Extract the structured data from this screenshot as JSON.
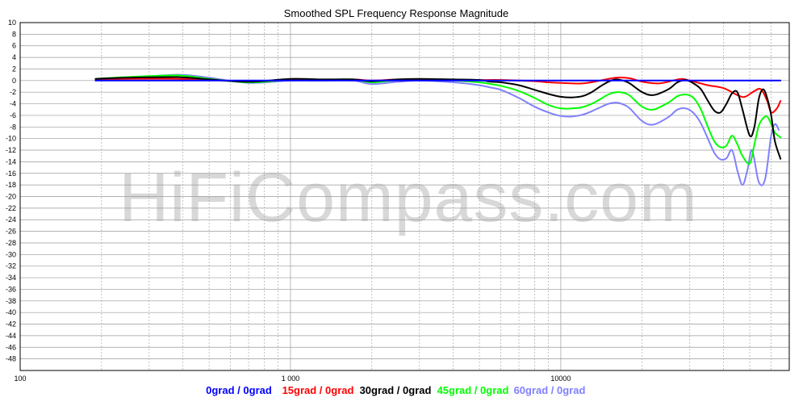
{
  "chart_data": {
    "type": "line",
    "title": "Smoothed SPL Frequency Response Magnitude",
    "watermark": "HiFiCompass.com",
    "xscale": "log",
    "xlim": [
      100,
      70000
    ],
    "ylim": [
      -50,
      10
    ],
    "x_tick_labels": [
      {
        "value": 100,
        "label": "100"
      },
      {
        "value": 1000,
        "label": "1 000"
      },
      {
        "value": 10000,
        "label": "10000"
      }
    ],
    "y_ticks": [
      10,
      8,
      6,
      4,
      2,
      0,
      -2,
      -4,
      -6,
      -8,
      -10,
      -12,
      -14,
      -16,
      -18,
      -20,
      -22,
      -24,
      -26,
      -28,
      -30,
      -32,
      -34,
      -36,
      -38,
      -40,
      -42,
      -44,
      -46,
      -48
    ],
    "grid": true,
    "legend_position": "bottom",
    "series": [
      {
        "name": "0grad / 0grad",
        "color": "#0000ff",
        "x": [
          190,
          500,
          1000,
          5000,
          10000,
          20000,
          40000,
          65000
        ],
        "y": [
          0,
          0,
          0,
          0,
          0,
          0,
          0,
          0
        ]
      },
      {
        "name": "15grad / 0grad",
        "color": "#ff0000",
        "x": [
          190,
          250,
          380,
          500,
          700,
          1000,
          1300,
          1700,
          2000,
          2500,
          3000,
          4000,
          5000,
          6000,
          7000,
          8000,
          9000,
          10000,
          12000,
          14000,
          16000,
          18000,
          20000,
          23000,
          26000,
          28000,
          30000,
          35000,
          40000,
          45000,
          48000,
          52000,
          55000,
          58000,
          60000,
          63000,
          65000
        ],
        "y": [
          0.2,
          0.3,
          0.3,
          0.1,
          -0.1,
          0.1,
          0.1,
          0.2,
          0.0,
          0.2,
          0.2,
          0.1,
          0.1,
          0.1,
          0.0,
          -0.1,
          -0.3,
          -0.4,
          -0.5,
          0.0,
          0.5,
          0.4,
          -0.2,
          -0.5,
          0.0,
          0.3,
          0.0,
          -0.8,
          -1.3,
          -2.5,
          -2.8,
          -1.8,
          -1.5,
          -3.5,
          -5.5,
          -4.8,
          -3.5
        ]
      },
      {
        "name": "30grad / 0grad",
        "color": "#000000",
        "x": [
          190,
          250,
          380,
          500,
          700,
          1000,
          1300,
          1700,
          2000,
          2500,
          3000,
          4000,
          5000,
          5500,
          6000,
          7000,
          8000,
          9000,
          10000,
          11000,
          12000,
          13000,
          14000,
          15000,
          16000,
          17000,
          18000,
          20000,
          22000,
          25000,
          27000,
          29000,
          31000,
          33000,
          35000,
          37000,
          39000,
          41000,
          43000,
          45000,
          47000,
          50000,
          52000,
          54000,
          56000,
          58000,
          60000,
          62000,
          65000
        ],
        "y": [
          0.3,
          0.5,
          0.6,
          0.2,
          -0.2,
          0.3,
          0.2,
          0.2,
          -0.1,
          0.2,
          0.3,
          0.2,
          0.1,
          -0.2,
          -0.3,
          -0.8,
          -1.6,
          -2.3,
          -2.8,
          -2.9,
          -2.7,
          -2.0,
          -1.0,
          -0.2,
          0.2,
          0.0,
          -0.5,
          -2.0,
          -2.5,
          -1.5,
          -0.3,
          0.1,
          -0.5,
          -1.5,
          -3.5,
          -5.2,
          -5.5,
          -4.0,
          -2.2,
          -2.0,
          -5.0,
          -9.5,
          -8.0,
          -3.2,
          -1.5,
          -3.0,
          -6.0,
          -10.5,
          -13.5
        ]
      },
      {
        "name": "45grad / 0grad",
        "color": "#00ff00",
        "x": [
          190,
          250,
          380,
          500,
          700,
          1000,
          1300,
          1700,
          2000,
          2500,
          3000,
          4000,
          5000,
          5500,
          6000,
          7000,
          8000,
          9000,
          10000,
          11000,
          12000,
          13000,
          14000,
          15000,
          16000,
          17000,
          18000,
          20000,
          22000,
          25000,
          27000,
          29000,
          31000,
          33000,
          35000,
          37000,
          39000,
          41000,
          43000,
          45000,
          47000,
          50000,
          52000,
          54000,
          56000,
          58000,
          60000,
          62000,
          65000
        ],
        "y": [
          0.3,
          0.6,
          0.9,
          0.3,
          -0.3,
          0.1,
          0.1,
          0.2,
          -0.3,
          0.1,
          0.2,
          0.0,
          -0.3,
          -0.6,
          -0.9,
          -1.8,
          -3.0,
          -4.2,
          -4.8,
          -4.8,
          -4.6,
          -4.0,
          -3.2,
          -2.4,
          -2.0,
          -2.1,
          -2.6,
          -4.5,
          -5.0,
          -3.8,
          -2.7,
          -2.4,
          -3.0,
          -5.0,
          -8.0,
          -10.5,
          -11.5,
          -11.2,
          -9.5,
          -11.0,
          -13.0,
          -14.3,
          -11.0,
          -7.8,
          -6.5,
          -6.2,
          -7.5,
          -9.0,
          -9.8
        ]
      },
      {
        "name": "60grad / 0grad",
        "color": "#8080ff",
        "x": [
          190,
          250,
          380,
          500,
          700,
          1000,
          1300,
          1700,
          2000,
          2500,
          3000,
          4000,
          5000,
          5500,
          6000,
          7000,
          8000,
          9000,
          10000,
          11000,
          12000,
          13000,
          14000,
          15000,
          16000,
          17000,
          18000,
          20000,
          22000,
          25000,
          27000,
          29000,
          31000,
          33000,
          35000,
          37000,
          39000,
          41000,
          43000,
          45000,
          47000,
          49000,
          51000,
          54000,
          57000,
          60000,
          62000,
          64000
        ],
        "y": [
          0.0,
          0.4,
          1.0,
          0.5,
          -0.4,
          0.0,
          0.0,
          0.0,
          -0.6,
          -0.2,
          0.0,
          -0.3,
          -0.8,
          -1.2,
          -1.6,
          -3.0,
          -4.5,
          -5.5,
          -6.1,
          -6.2,
          -5.9,
          -5.3,
          -4.6,
          -4.0,
          -3.8,
          -4.1,
          -4.8,
          -7.0,
          -7.6,
          -6.3,
          -5.0,
          -4.8,
          -5.6,
          -7.4,
          -10.0,
          -12.5,
          -13.6,
          -13.4,
          -12.0,
          -15.5,
          -18.0,
          -15.5,
          -12.0,
          -17.5,
          -17.0,
          -9.5,
          -7.5,
          -8.5
        ]
      }
    ]
  }
}
